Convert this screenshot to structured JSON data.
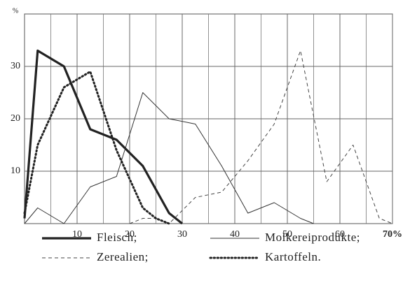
{
  "chart_data": {
    "type": "line",
    "ylabel": "%",
    "xlim": [
      0,
      70
    ],
    "ylim": [
      0,
      40
    ],
    "xticks": [
      10,
      20,
      30,
      40,
      50,
      60,
      {
        "value": 70,
        "label": "70%"
      }
    ],
    "yticks": [
      10,
      20,
      30
    ],
    "grid": true,
    "legend": "bottom",
    "series": [
      {
        "name": "Fleisch;",
        "color": "#222",
        "line_style": "solid",
        "width": 3.2,
        "x": [
          0,
          2.5,
          7.5,
          12.5,
          17.5,
          22.5,
          27.5,
          30
        ],
        "values": [
          1,
          33,
          30,
          18,
          16,
          11,
          2,
          0
        ]
      },
      {
        "name": "Molkereiprodukte;",
        "color": "#333",
        "line_style": "solid",
        "width": 1,
        "x": [
          0,
          2.5,
          7.5,
          12.5,
          17.5,
          22.5,
          27.5,
          32.5,
          37.5,
          42.5,
          47.5,
          52.5,
          55
        ],
        "values": [
          0,
          3,
          0,
          7,
          9,
          25,
          20,
          19,
          11,
          2,
          4,
          1,
          0
        ]
      },
      {
        "name": "Zerealien;",
        "color": "#444",
        "line_style": "dashed",
        "width": 1,
        "x": [
          20,
          22.5,
          25,
          27.5,
          32.5,
          37.5,
          42.5,
          47.5,
          52.5,
          57.5,
          62.5,
          67.5,
          70
        ],
        "values": [
          0,
          1,
          1,
          0,
          5,
          6,
          12,
          19,
          33,
          8,
          15,
          1,
          0
        ]
      },
      {
        "name": "Kartoffeln.",
        "color": "#222",
        "line_style": "dotted",
        "width": 3,
        "x": [
          0,
          2.5,
          7.5,
          12.5,
          17.5,
          22.5,
          25,
          27.5
        ],
        "values": [
          2,
          15,
          26,
          29,
          14,
          3,
          1,
          0
        ]
      }
    ]
  }
}
